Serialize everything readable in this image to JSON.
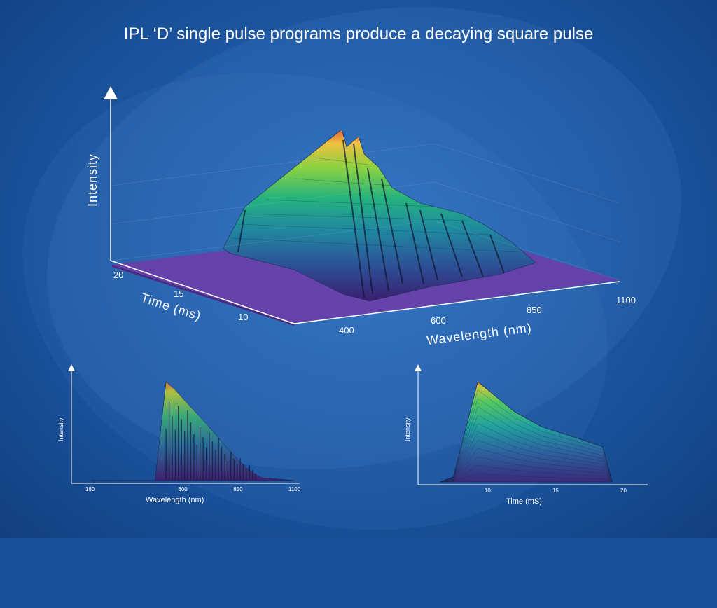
{
  "title": "IPL ‘D’ single pulse programs produce a decaying square pulse",
  "chart_data": [
    {
      "type": "surface3d",
      "zlabel": "Intensity",
      "xlabel": "Wavelength (nm)",
      "ylabel": "Time (ms)",
      "x_ticks": [
        "400",
        "600",
        "850",
        "1100"
      ],
      "y_ticks": [
        "20",
        "15",
        "10"
      ],
      "colormap": [
        "#3b1d6e",
        "#2d4f96",
        "#1f8aa0",
        "#25b37d",
        "#8bd23f",
        "#f0c040",
        "#e06030"
      ]
    },
    {
      "type": "area",
      "ylabel": "Intensity",
      "xlabel": "Wavelength (nm)",
      "x_ticks": [
        "180",
        "600",
        "850",
        "1100"
      ],
      "x": [
        180,
        300,
        470,
        520,
        560,
        600,
        650,
        700,
        750,
        800,
        850,
        900,
        950,
        1100
      ],
      "values": [
        0,
        0,
        0,
        100,
        92,
        82,
        70,
        58,
        45,
        32,
        20,
        10,
        3,
        0
      ]
    },
    {
      "type": "area",
      "ylabel": "Intensity",
      "xlabel": "Time (mS)",
      "x_ticks": [
        "10",
        "15",
        "20"
      ],
      "x": [
        6.5,
        7.5,
        9.3,
        12,
        14,
        17,
        18.5,
        19.2
      ],
      "values": [
        0,
        5,
        100,
        70,
        55,
        42,
        35,
        0
      ]
    }
  ]
}
